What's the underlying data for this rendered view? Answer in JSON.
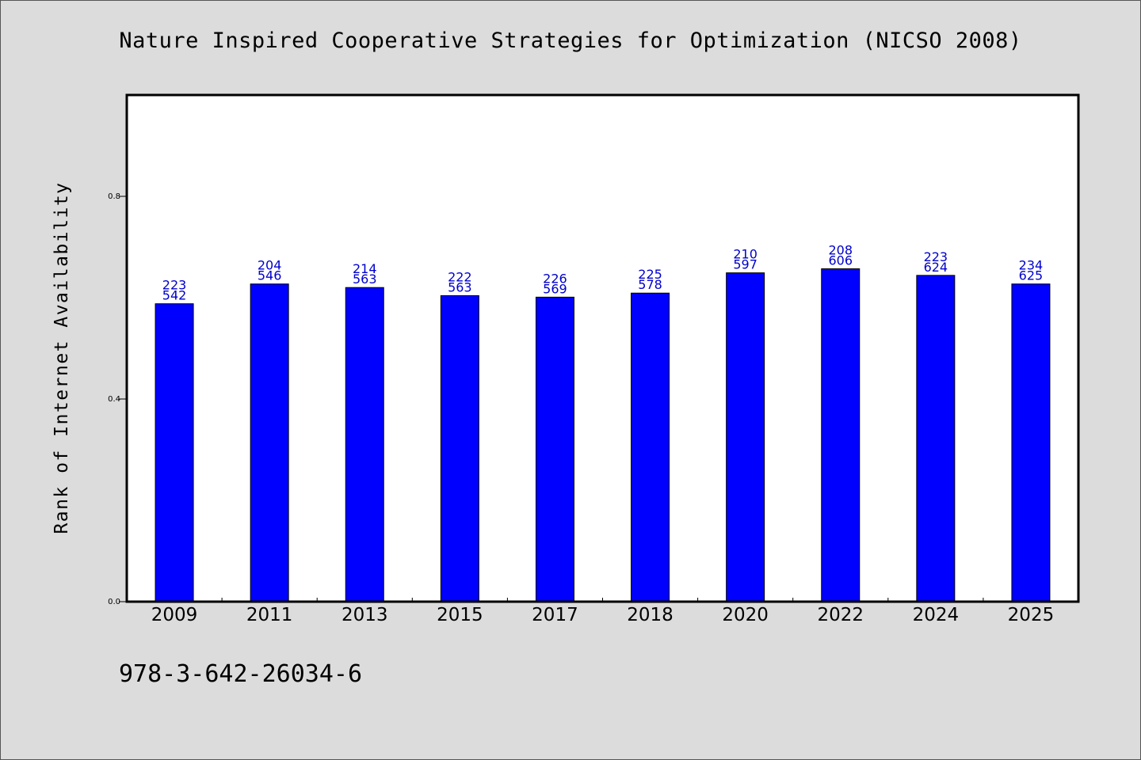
{
  "chart_data": {
    "type": "bar",
    "title": "Nature Inspired Cooperative Strategies for Optimization (NICSO 2008)",
    "xlabel": "",
    "ylabel": "Rank of Internet Availability",
    "categories": [
      "2009",
      "2011",
      "2013",
      "2015",
      "2017",
      "2018",
      "2020",
      "2022",
      "2024",
      "2025"
    ],
    "values": [
      0.588,
      0.627,
      0.62,
      0.604,
      0.601,
      0.609,
      0.649,
      0.657,
      0.644,
      0.627
    ],
    "bar_labels": [
      [
        "223",
        "542"
      ],
      [
        "204",
        "546"
      ],
      [
        "214",
        "563"
      ],
      [
        "222",
        "563"
      ],
      [
        "226",
        "569"
      ],
      [
        "225",
        "578"
      ],
      [
        "210",
        "597"
      ],
      [
        "208",
        "606"
      ],
      [
        "223",
        "624"
      ],
      [
        "234",
        "625"
      ]
    ],
    "ylim": [
      0,
      1.0
    ],
    "yticks": [
      "0.0",
      "0.4",
      "0.8"
    ],
    "grid": false,
    "colors": {
      "bar": "#0000ff",
      "bar_label": "#0000cc",
      "page_background": "#dcdcdc",
      "plot_background": "#ffffff"
    }
  },
  "footer_id": "978-3-642-26034-6"
}
